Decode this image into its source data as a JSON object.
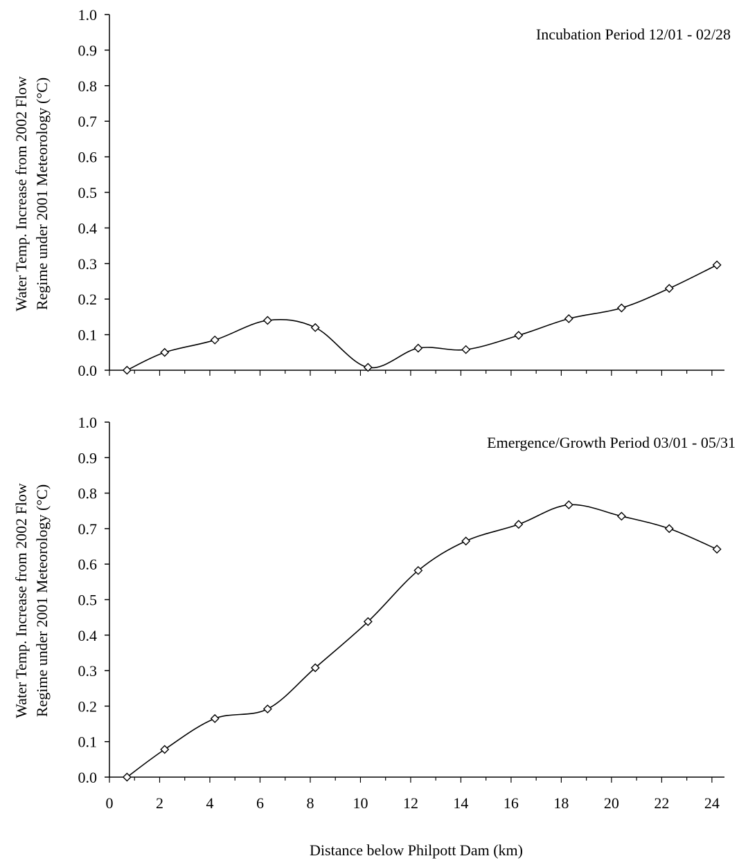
{
  "chart_data": [
    {
      "type": "line",
      "annotation": "Incubation Period 12/01 - 02/28",
      "ylabel_line1": "Water Temp. Increase from 2002 Flow",
      "ylabel_line2": "Regime under 2001 Meteorology (°C)",
      "xlim": [
        0,
        24.5
      ],
      "ylim": [
        0,
        1.0
      ],
      "yticks": [
        "0.0",
        "0.1",
        "0.2",
        "0.3",
        "0.4",
        "0.5",
        "0.6",
        "0.7",
        "0.8",
        "0.9",
        "1.0"
      ],
      "grid": false,
      "marker": "diamond",
      "series": [
        {
          "x": [
            0.7,
            2.2,
            4.2,
            6.3,
            8.2,
            10.3,
            12.3,
            14.2,
            16.3,
            18.3,
            20.4,
            22.3,
            24.2
          ],
          "values": [
            0.0,
            0.05,
            0.085,
            0.14,
            0.12,
            0.008,
            0.062,
            0.058,
            0.098,
            0.145,
            0.175,
            0.23,
            0.296
          ]
        }
      ]
    },
    {
      "type": "line",
      "annotation": "Emergence/Growth Period 03/01 - 05/31",
      "ylabel_line1": "Water Temp. Increase from 2002 Flow",
      "ylabel_line2": "Regime under 2001 Meteorology (°C)",
      "xlabel": "Distance below Philpott Dam (km)",
      "xticks": [
        0,
        2,
        4,
        6,
        8,
        10,
        12,
        14,
        16,
        18,
        20,
        22,
        24
      ],
      "xlim": [
        0,
        24.5
      ],
      "ylim": [
        0,
        1.0
      ],
      "yticks": [
        "0.0",
        "0.1",
        "0.2",
        "0.3",
        "0.4",
        "0.5",
        "0.6",
        "0.7",
        "0.8",
        "0.9",
        "1.0"
      ],
      "grid": false,
      "marker": "diamond",
      "series": [
        {
          "x": [
            0.7,
            2.2,
            4.2,
            6.3,
            8.2,
            10.3,
            12.3,
            14.2,
            16.3,
            18.3,
            20.4,
            22.3,
            24.2
          ],
          "values": [
            0.0,
            0.078,
            0.165,
            0.192,
            0.308,
            0.438,
            0.582,
            0.665,
            0.712,
            0.767,
            0.735,
            0.7,
            0.642
          ]
        }
      ]
    }
  ]
}
